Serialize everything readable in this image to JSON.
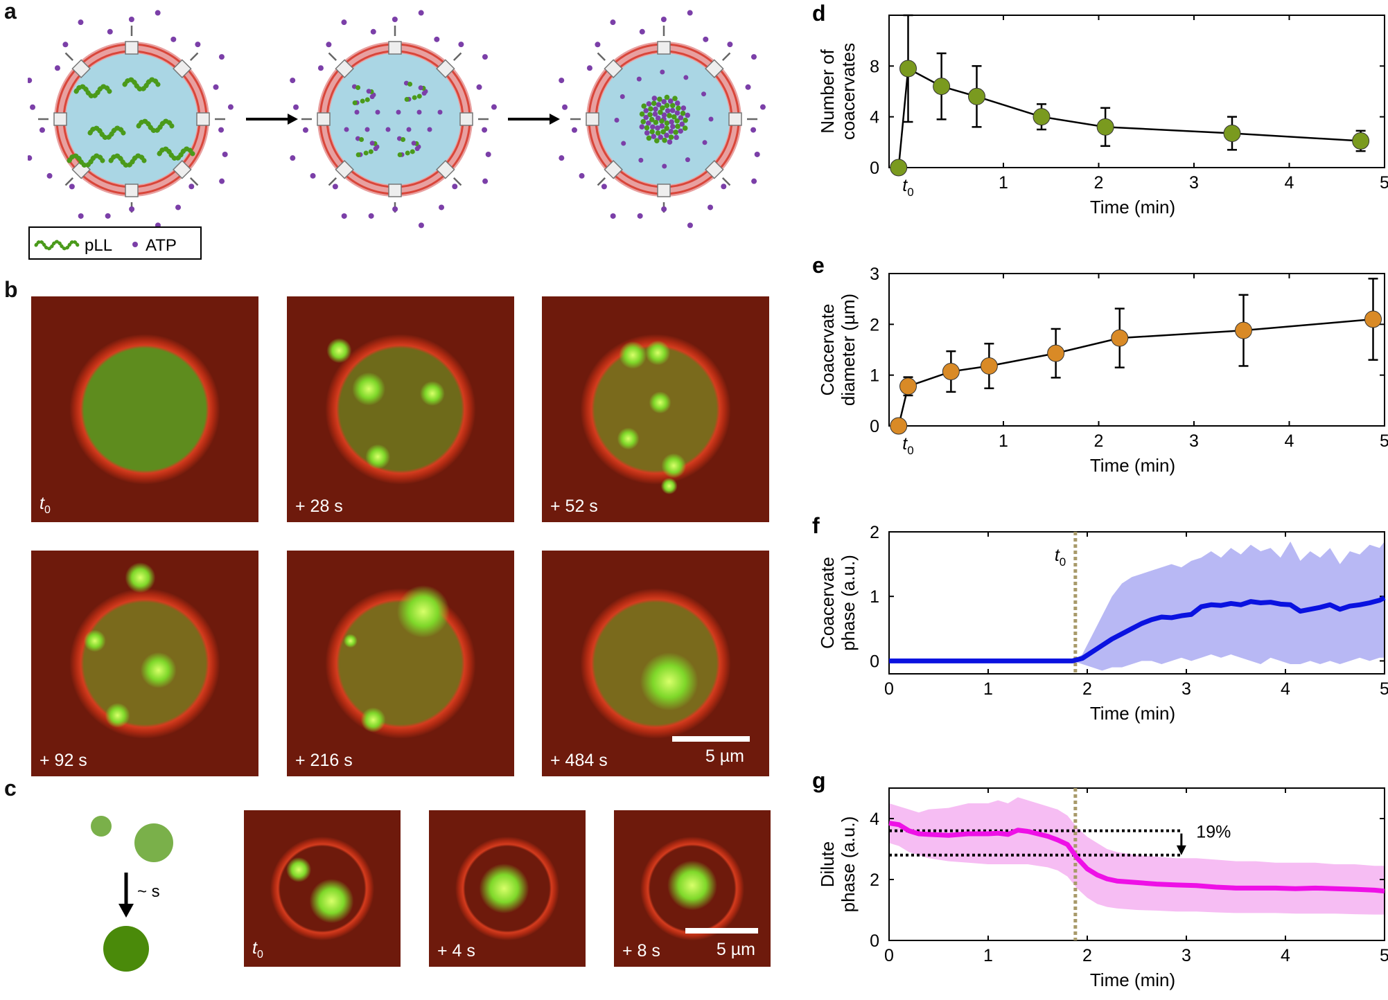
{
  "panels": {
    "a": "a",
    "b": "b",
    "c": "c",
    "d": "d",
    "e": "e",
    "f": "f",
    "g": "g"
  },
  "legend_a": {
    "pll": "pLL",
    "atp": "ATP"
  },
  "micro_b": [
    {
      "label": "t",
      "sub": "0"
    },
    {
      "label": "+ 28 s",
      "sub": ""
    },
    {
      "label": "+ 52 s",
      "sub": ""
    },
    {
      "label": "+ 92 s",
      "sub": ""
    },
    {
      "label": "+ 216 s",
      "sub": ""
    },
    {
      "label": "+ 484 s",
      "sub": ""
    }
  ],
  "scale_b": "5 µm",
  "micro_c": [
    {
      "label": "t",
      "sub": "0"
    },
    {
      "label": "+ 4 s",
      "sub": ""
    },
    {
      "label": "+ 8 s",
      "sub": ""
    }
  ],
  "scale_c": "5 µm",
  "fusion_label": "~ s",
  "colors": {
    "d": "#7a9a1f",
    "e": "#d98a26",
    "f": "#0a12e0",
    "f_band": "#b8b8f4",
    "g": "#ee10e6",
    "g_band": "#f6bdf3",
    "t0line": "#a89a6a"
  },
  "chart_data": [
    {
      "id": "d",
      "type": "scatter-line",
      "ylabel": [
        "Number of",
        "coacervates"
      ],
      "xlabel": "Time (min)",
      "xlim": [
        -0.2,
        5
      ],
      "ylim": [
        0,
        12
      ],
      "xticks": [
        1,
        2,
        3,
        4,
        5
      ],
      "yticks": [
        0,
        4,
        8
      ],
      "t0": "t",
      "t0_sub": "0",
      "x": [
        -0.1,
        0.0,
        0.35,
        0.72,
        1.4,
        2.07,
        3.4,
        4.75
      ],
      "y": [
        0,
        7.8,
        6.4,
        5.6,
        4.0,
        3.2,
        2.7,
        2.1
      ],
      "err": [
        0,
        4.2,
        2.6,
        2.4,
        1.0,
        1.5,
        1.3,
        0.8
      ]
    },
    {
      "id": "e",
      "type": "scatter-line",
      "ylabel": [
        "Coacervate",
        "diameter (µm)"
      ],
      "xlabel": "Time (min)",
      "xlim": [
        -0.2,
        5
      ],
      "ylim": [
        0,
        3
      ],
      "xticks": [
        1,
        2,
        3,
        4,
        5
      ],
      "yticks": [
        0,
        1,
        2,
        3
      ],
      "t0": "t",
      "t0_sub": "0",
      "x": [
        -0.1,
        0.0,
        0.45,
        0.85,
        1.55,
        2.22,
        3.52,
        4.88
      ],
      "y": [
        0,
        0.78,
        1.07,
        1.18,
        1.43,
        1.73,
        1.88,
        2.1
      ],
      "err": [
        0,
        0.18,
        0.4,
        0.44,
        0.48,
        0.58,
        0.7,
        0.8
      ]
    },
    {
      "id": "f",
      "type": "line",
      "ylabel": [
        "Coacervate",
        "phase (a.u.)"
      ],
      "xlabel": "Time (min)",
      "xlim": [
        0,
        5
      ],
      "ylim": [
        -0.2,
        2
      ],
      "xticks": [
        0,
        1,
        2,
        3,
        4,
        5
      ],
      "yticks": [
        0,
        1,
        2
      ],
      "t0x": 1.88,
      "t0": "t",
      "t0_sub": "0",
      "x": [
        0,
        1.85,
        1.95,
        2.05,
        2.15,
        2.25,
        2.35,
        2.45,
        2.55,
        2.65,
        2.75,
        2.85,
        2.95,
        3.05,
        3.15,
        3.25,
        3.35,
        3.45,
        3.55,
        3.65,
        3.75,
        3.85,
        3.95,
        4.05,
        4.15,
        4.25,
        4.35,
        4.45,
        4.55,
        4.65,
        4.75,
        4.85,
        4.95,
        5.0
      ],
      "y": [
        0,
        0,
        0.04,
        0.14,
        0.24,
        0.34,
        0.42,
        0.5,
        0.58,
        0.64,
        0.68,
        0.67,
        0.7,
        0.72,
        0.84,
        0.87,
        0.86,
        0.89,
        0.87,
        0.92,
        0.9,
        0.91,
        0.88,
        0.87,
        0.77,
        0.8,
        0.83,
        0.87,
        0.8,
        0.85,
        0.87,
        0.9,
        0.94,
        0.98
      ],
      "band_hi": [
        0,
        0,
        0.1,
        0.4,
        0.7,
        1.0,
        1.2,
        1.3,
        1.35,
        1.4,
        1.45,
        1.5,
        1.45,
        1.55,
        1.6,
        1.7,
        1.6,
        1.75,
        1.65,
        1.8,
        1.7,
        1.75,
        1.6,
        1.85,
        1.55,
        1.7,
        1.6,
        1.75,
        1.5,
        1.7,
        1.65,
        1.8,
        1.75,
        1.85
      ],
      "band_lo": [
        0,
        0,
        -0.05,
        -0.1,
        -0.15,
        -0.1,
        -0.1,
        -0.05,
        0,
        0,
        -0.05,
        0,
        0.05,
        0,
        0.05,
        0.1,
        0.05,
        0.1,
        0.05,
        0,
        -0.05,
        0.05,
        0.0,
        -0.05,
        -0.05,
        0,
        -0.05,
        0,
        -0.05,
        0,
        0.05,
        0,
        0.05,
        0.05
      ]
    },
    {
      "id": "g",
      "type": "line",
      "ylabel": [
        "Dilute",
        "phase (a.u.)"
      ],
      "xlabel": "Time (min)",
      "xlim": [
        0,
        5
      ],
      "ylim": [
        0,
        5
      ],
      "xticks": [
        0,
        1,
        2,
        3,
        4,
        5
      ],
      "yticks": [
        0,
        2,
        4
      ],
      "t0x": 1.88,
      "hline_hi": 3.6,
      "hline_lo": 2.8,
      "annot": "19%",
      "x": [
        0,
        0.1,
        0.2,
        0.3,
        0.4,
        0.6,
        0.8,
        1.0,
        1.1,
        1.2,
        1.3,
        1.4,
        1.5,
        1.6,
        1.7,
        1.8,
        1.9,
        2.0,
        2.1,
        2.2,
        2.3,
        2.5,
        2.7,
        2.9,
        3.1,
        3.3,
        3.5,
        3.7,
        3.9,
        4.1,
        4.3,
        4.5,
        4.7,
        4.9,
        5.0
      ],
      "y": [
        3.85,
        3.8,
        3.6,
        3.5,
        3.48,
        3.45,
        3.5,
        3.5,
        3.52,
        3.48,
        3.62,
        3.58,
        3.5,
        3.42,
        3.3,
        3.15,
        2.7,
        2.35,
        2.15,
        2.02,
        1.95,
        1.9,
        1.85,
        1.82,
        1.8,
        1.75,
        1.72,
        1.72,
        1.72,
        1.7,
        1.72,
        1.7,
        1.68,
        1.65,
        1.62
      ],
      "band_hi": [
        4.5,
        4.4,
        4.3,
        4.2,
        4.3,
        4.35,
        4.5,
        4.5,
        4.6,
        4.5,
        4.7,
        4.6,
        4.5,
        4.4,
        4.3,
        4.1,
        3.7,
        3.4,
        3.2,
        3.0,
        2.9,
        2.8,
        2.75,
        2.7,
        2.7,
        2.65,
        2.6,
        2.6,
        2.55,
        2.55,
        2.55,
        2.5,
        2.5,
        2.45,
        2.45
      ],
      "band_lo": [
        3.2,
        3.1,
        2.9,
        2.8,
        2.7,
        2.6,
        2.55,
        2.5,
        2.5,
        2.5,
        2.5,
        2.5,
        2.45,
        2.4,
        2.3,
        2.1,
        1.7,
        1.4,
        1.2,
        1.1,
        1.05,
        1.0,
        0.98,
        0.95,
        0.95,
        0.92,
        0.9,
        0.9,
        0.9,
        0.88,
        0.88,
        0.88,
        0.86,
        0.85,
        0.85
      ]
    }
  ]
}
